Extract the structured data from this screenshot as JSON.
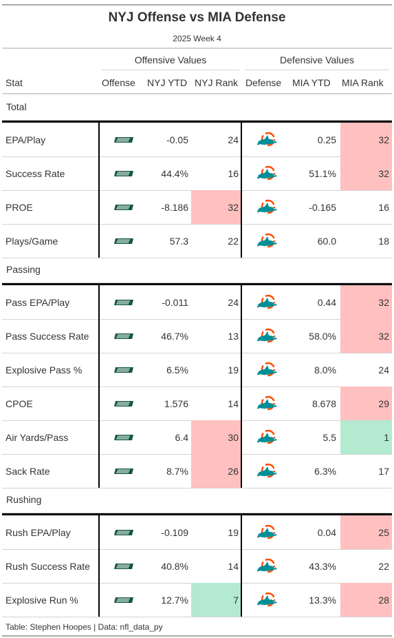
{
  "title": "NYJ Offense vs MIA Defense",
  "subtitle": "2025 Week 4",
  "spanners": {
    "offense": "Offensive Values",
    "defense": "Defensive Values"
  },
  "columns": {
    "stat": "Stat",
    "offense": "Offense",
    "nyj_ytd": "NYJ YTD",
    "nyj_rank": "NYJ Rank",
    "defense": "Defense",
    "mia_ytd": "MIA YTD",
    "mia_rank": "MIA Rank"
  },
  "logos": {
    "offense": "jets-logo-icon",
    "defense": "dolphins-logo-icon"
  },
  "colors": {
    "bad_rank": "#ffc0c0",
    "good_rank": "#b3ead0",
    "jets_green": "#125740",
    "dolphins_aqua": "#008e97",
    "dolphins_orange": "#fc4c02"
  },
  "groups": [
    {
      "label": "Total",
      "rows": [
        {
          "stat": "EPA/Play",
          "nyj_ytd": "-0.05",
          "nyj_rank": "24",
          "nyj_highlight": "",
          "mia_ytd": "0.25",
          "mia_rank": "32",
          "mia_highlight": "bad"
        },
        {
          "stat": "Success Rate",
          "nyj_ytd": "44.4%",
          "nyj_rank": "16",
          "nyj_highlight": "",
          "mia_ytd": "51.1%",
          "mia_rank": "32",
          "mia_highlight": "bad"
        },
        {
          "stat": "PROE",
          "nyj_ytd": "-8.186",
          "nyj_rank": "32",
          "nyj_highlight": "bad",
          "mia_ytd": "-0.165",
          "mia_rank": "16",
          "mia_highlight": ""
        },
        {
          "stat": "Plays/Game",
          "nyj_ytd": "57.3",
          "nyj_rank": "22",
          "nyj_highlight": "",
          "mia_ytd": "60.0",
          "mia_rank": "18",
          "mia_highlight": ""
        }
      ]
    },
    {
      "label": "Passing",
      "rows": [
        {
          "stat": "Pass EPA/Play",
          "nyj_ytd": "-0.011",
          "nyj_rank": "24",
          "nyj_highlight": "",
          "mia_ytd": "0.44",
          "mia_rank": "32",
          "mia_highlight": "bad"
        },
        {
          "stat": "Pass Success Rate",
          "nyj_ytd": "46.7%",
          "nyj_rank": "13",
          "nyj_highlight": "",
          "mia_ytd": "58.0%",
          "mia_rank": "32",
          "mia_highlight": "bad"
        },
        {
          "stat": "Explosive Pass %",
          "nyj_ytd": "6.5%",
          "nyj_rank": "19",
          "nyj_highlight": "",
          "mia_ytd": "8.0%",
          "mia_rank": "24",
          "mia_highlight": ""
        },
        {
          "stat": "CPOE",
          "nyj_ytd": "1.576",
          "nyj_rank": "14",
          "nyj_highlight": "",
          "mia_ytd": "8.678",
          "mia_rank": "29",
          "mia_highlight": "bad"
        },
        {
          "stat": "Air Yards/Pass",
          "nyj_ytd": "6.4",
          "nyj_rank": "30",
          "nyj_highlight": "bad",
          "mia_ytd": "5.5",
          "mia_rank": "1",
          "mia_highlight": "good"
        },
        {
          "stat": "Sack Rate",
          "nyj_ytd": "8.7%",
          "nyj_rank": "26",
          "nyj_highlight": "bad",
          "mia_ytd": "6.3%",
          "mia_rank": "17",
          "mia_highlight": ""
        }
      ]
    },
    {
      "label": "Rushing",
      "rows": [
        {
          "stat": "Rush EPA/Play",
          "nyj_ytd": "-0.109",
          "nyj_rank": "19",
          "nyj_highlight": "",
          "mia_ytd": "0.04",
          "mia_rank": "25",
          "mia_highlight": "bad"
        },
        {
          "stat": "Rush Success Rate",
          "nyj_ytd": "40.8%",
          "nyj_rank": "14",
          "nyj_highlight": "",
          "mia_ytd": "43.3%",
          "mia_rank": "22",
          "mia_highlight": ""
        },
        {
          "stat": "Explosive Run %",
          "nyj_ytd": "12.7%",
          "nyj_rank": "7",
          "nyj_highlight": "good",
          "mia_ytd": "13.3%",
          "mia_rank": "28",
          "mia_highlight": "bad"
        }
      ]
    }
  ],
  "footer": "Table: Stephen Hoopes | Data: nfl_data_py"
}
